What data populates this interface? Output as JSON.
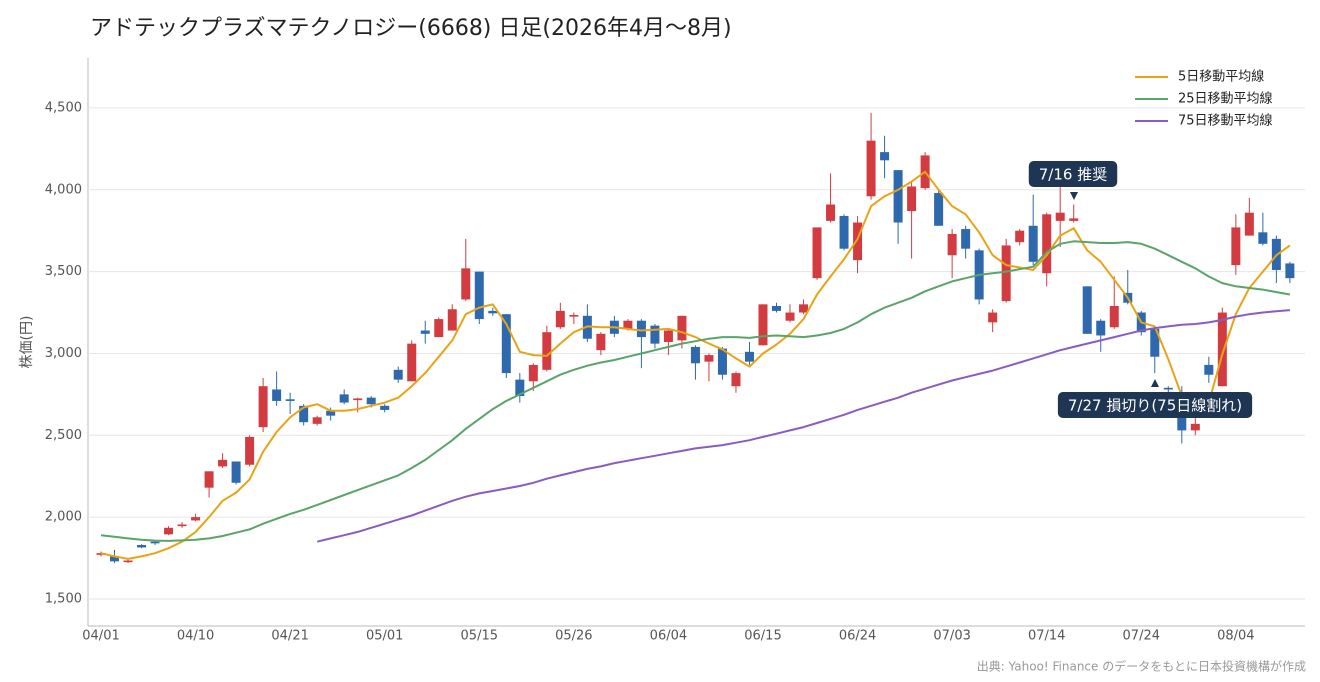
{
  "chart_data": {
    "type": "candlestick",
    "title": "アドテックプラズマテクノロジー(6668) 日足(2026年4月〜8月)",
    "y_label": "株価(円)",
    "source": "出典: Yahoo! Finance のデータをもとに日本投資機構が作成",
    "categories": [
      "04/01",
      null,
      null,
      null,
      null,
      null,
      null,
      "04/10",
      null,
      null,
      null,
      null,
      null,
      null,
      "04/21",
      null,
      null,
      null,
      null,
      null,
      null,
      "05/01",
      null,
      null,
      null,
      null,
      null,
      null,
      "05/15",
      null,
      null,
      null,
      null,
      null,
      null,
      "05/26",
      null,
      null,
      null,
      null,
      null,
      null,
      "06/04",
      null,
      null,
      null,
      null,
      null,
      null,
      "06/15",
      null,
      null,
      null,
      null,
      null,
      null,
      "06/24",
      null,
      null,
      null,
      null,
      null,
      null,
      "07/03",
      null,
      null,
      null,
      null,
      null,
      null,
      "07/14",
      null,
      null,
      null,
      null,
      null,
      null,
      "07/24",
      null,
      null,
      null,
      null,
      null,
      null,
      "08/04",
      null,
      null,
      null,
      null
    ],
    "open": [
      1770,
      1760,
      1725,
      1830,
      1850,
      1895,
      1945,
      1980,
      2180,
      2310,
      2340,
      2320,
      2550,
      2780,
      2720,
      2680,
      2570,
      2650,
      2750,
      2715,
      2730,
      2680,
      2900,
      2830,
      3140,
      3100,
      3140,
      3330,
      3500,
      3260,
      3240,
      2840,
      2830,
      2900,
      3160,
      3225,
      3230,
      3020,
      3200,
      3150,
      3200,
      3170,
      3070,
      3080,
      3040,
      2950,
      3030,
      2800,
      3010,
      3050,
      3290,
      3200,
      3250,
      3460,
      3810,
      3840,
      3570,
      3960,
      4230,
      4120,
      3870,
      4010,
      3980,
      3600,
      3760,
      3630,
      3190,
      3320,
      3680,
      3780,
      3490,
      3810,
      3810,
      3410,
      3200,
      3160,
      3370,
      3250,
      3150,
      2790,
      2710,
      2530,
      2930,
      2800,
      3540,
      3720,
      3740,
      3700,
      3550
    ],
    "high": [
      1790,
      1800,
      1740,
      1835,
      1860,
      1945,
      1970,
      2020,
      2280,
      2390,
      2340,
      2500,
      2850,
      2890,
      2760,
      2690,
      2620,
      2670,
      2780,
      2730,
      2740,
      2690,
      2920,
      3080,
      3200,
      3220,
      3300,
      3700,
      3500,
      3280,
      3240,
      2880,
      2940,
      3170,
      3310,
      3250,
      3300,
      3130,
      3230,
      3210,
      3210,
      3180,
      3150,
      3230,
      3050,
      3000,
      3040,
      2890,
      3070,
      3300,
      3310,
      3300,
      3330,
      3770,
      4100,
      3850,
      3840,
      4470,
      4330,
      4120,
      4050,
      4230,
      4000,
      3760,
      3780,
      3640,
      3270,
      3700,
      3760,
      3970,
      3860,
      4040,
      3910,
      3410,
      3210,
      3470,
      3510,
      3260,
      3150,
      2800,
      2800,
      2620,
      2980,
      3280,
      3850,
      3950,
      3860,
      3720,
      3560
    ],
    "low": [
      1760,
      1720,
      1720,
      1810,
      1830,
      1890,
      1935,
      1975,
      2120,
      2300,
      2200,
      2310,
      2520,
      2680,
      2630,
      2560,
      2560,
      2590,
      2690,
      2640,
      2670,
      2640,
      2820,
      2830,
      3060,
      3100,
      3140,
      3320,
      3180,
      3230,
      2850,
      2700,
      2770,
      2890,
      3150,
      3180,
      3070,
      2990,
      3100,
      3140,
      2910,
      3030,
      2990,
      3030,
      2840,
      2830,
      2840,
      2760,
      2930,
      3050,
      3250,
      3190,
      3240,
      3450,
      3800,
      3630,
      3490,
      3940,
      4070,
      3670,
      3580,
      4000,
      3780,
      3460,
      3580,
      3300,
      3130,
      3310,
      3660,
      3540,
      3410,
      3650,
      3800,
      3120,
      3010,
      3150,
      3300,
      3110,
      2880,
      2720,
      2450,
      2500,
      2820,
      2800,
      3480,
      3720,
      3660,
      3430,
      3430
    ],
    "close": [
      1780,
      1730,
      1735,
      1815,
      1840,
      1935,
      1955,
      2000,
      2280,
      2350,
      2210,
      2490,
      2800,
      2710,
      2710,
      2580,
      2610,
      2620,
      2700,
      2725,
      2690,
      2655,
      2840,
      3060,
      3120,
      3210,
      3270,
      3520,
      3210,
      3245,
      2880,
      2740,
      2930,
      3130,
      3260,
      3235,
      3090,
      3120,
      3120,
      3200,
      3100,
      3060,
      3140,
      3230,
      2940,
      2990,
      2870,
      2880,
      2950,
      3300,
      3260,
      3250,
      3300,
      3770,
      3910,
      3640,
      3800,
      4300,
      4180,
      3800,
      4020,
      4210,
      3780,
      3730,
      3640,
      3330,
      3250,
      3660,
      3750,
      3560,
      3850,
      3860,
      3825,
      3120,
      3110,
      3290,
      3310,
      3130,
      2980,
      2780,
      2530,
      2570,
      2870,
      3250,
      3770,
      3860,
      3670,
      3510,
      3460
    ],
    "up_color": "#d23c41",
    "down_color": "#2e68ad",
    "series": [
      {
        "name": "5日移動平均線",
        "color": "#e9a316",
        "values": [
          1780,
          1760,
          1745,
          1760,
          1780,
          1810,
          1850,
          1910,
          2000,
          2100,
          2150,
          2230,
          2400,
          2520,
          2610,
          2670,
          2690,
          2650,
          2650,
          2660,
          2680,
          2700,
          2730,
          2800,
          2880,
          2980,
          3080,
          3240,
          3280,
          3300,
          3180,
          3010,
          2990,
          2985,
          3060,
          3130,
          3165,
          3160,
          3160,
          3150,
          3140,
          3145,
          3150,
          3130,
          3100,
          3060,
          3025,
          2970,
          2920,
          3000,
          3055,
          3120,
          3210,
          3360,
          3470,
          3575,
          3700,
          3900,
          3960,
          4000,
          4050,
          4110,
          4000,
          3900,
          3850,
          3740,
          3600,
          3540,
          3525,
          3510,
          3600,
          3720,
          3765,
          3630,
          3560,
          3450,
          3340,
          3190,
          3165,
          2965,
          2740,
          2625,
          2700,
          2995,
          3240,
          3400,
          3500,
          3600,
          3660
        ]
      },
      {
        "name": "25日移動平均線",
        "color": "#5aa469",
        "values": [
          1890,
          1880,
          1870,
          1862,
          1857,
          1855,
          1858,
          1862,
          1870,
          1885,
          1905,
          1925,
          1960,
          1990,
          2020,
          2045,
          2075,
          2105,
          2135,
          2165,
          2195,
          2225,
          2255,
          2300,
          2350,
          2410,
          2470,
          2540,
          2600,
          2660,
          2710,
          2750,
          2790,
          2830,
          2870,
          2900,
          2925,
          2945,
          2960,
          2980,
          3000,
          3020,
          3040,
          3060,
          3075,
          3090,
          3100,
          3100,
          3095,
          3105,
          3110,
          3105,
          3100,
          3110,
          3125,
          3150,
          3190,
          3240,
          3280,
          3310,
          3340,
          3380,
          3410,
          3440,
          3460,
          3480,
          3490,
          3500,
          3515,
          3530,
          3620,
          3670,
          3685,
          3680,
          3675,
          3675,
          3680,
          3670,
          3640,
          3600,
          3560,
          3520,
          3470,
          3430,
          3410,
          3400,
          3390,
          3375,
          3360
        ]
      },
      {
        "name": "75日移動平均線",
        "color": "#8a5cc0",
        "values": [
          null,
          null,
          null,
          null,
          null,
          null,
          null,
          null,
          null,
          null,
          null,
          null,
          null,
          null,
          null,
          null,
          1850,
          1870,
          1890,
          1910,
          1935,
          1960,
          1985,
          2010,
          2040,
          2070,
          2100,
          2125,
          2145,
          2160,
          2175,
          2190,
          2210,
          2235,
          2255,
          2275,
          2295,
          2310,
          2330,
          2345,
          2360,
          2375,
          2390,
          2405,
          2420,
          2430,
          2440,
          2455,
          2470,
          2490,
          2510,
          2530,
          2550,
          2575,
          2600,
          2625,
          2655,
          2680,
          2705,
          2730,
          2760,
          2785,
          2810,
          2835,
          2855,
          2875,
          2895,
          2920,
          2945,
          2970,
          2995,
          3020,
          3040,
          3060,
          3080,
          3100,
          3120,
          3140,
          3155,
          3165,
          3175,
          3180,
          3190,
          3205,
          3225,
          3240,
          3250,
          3258,
          3265
        ]
      }
    ],
    "ylim": [
      1335,
      4805
    ],
    "yticks": [
      {
        "value": 1500,
        "label": "1,500"
      },
      {
        "value": 2000,
        "label": "2,000"
      },
      {
        "value": 2500,
        "label": "2,500"
      },
      {
        "value": 3000,
        "label": "3,000"
      },
      {
        "value": 3500,
        "label": "3,500"
      },
      {
        "value": 4000,
        "label": "4,000"
      },
      {
        "value": 4500,
        "label": "4,500"
      }
    ],
    "grid": true,
    "legend": "upper right",
    "annotations": [
      {
        "text": "7/16 推奨"
      },
      {
        "text": "7/27 損切り(75日線割れ)"
      }
    ]
  }
}
